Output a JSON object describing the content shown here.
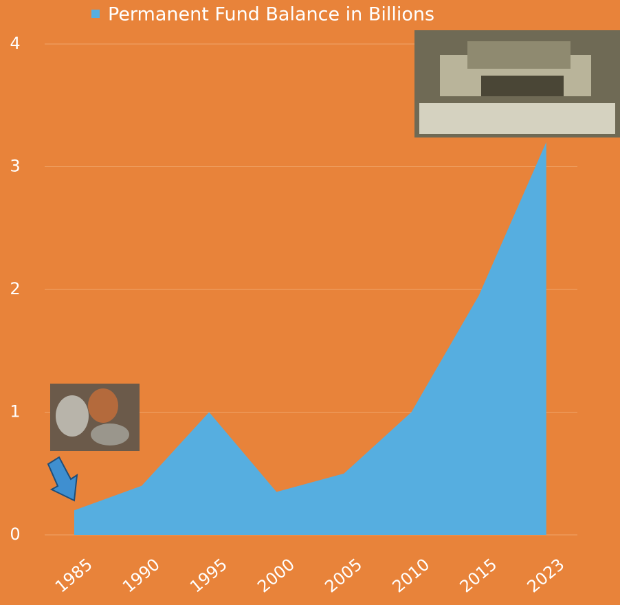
{
  "chart_data": {
    "type": "area",
    "categories": [
      "1985",
      "1990",
      "1995",
      "2000",
      "2005",
      "2010",
      "2015",
      "2023"
    ],
    "series": [
      {
        "name": "Permanent Fund Balance in Billions",
        "color": "#56aee0",
        "values": [
          0.2,
          0.4,
          1.0,
          0.35,
          0.5,
          1.0,
          1.95,
          3.2
        ]
      }
    ],
    "ylim": [
      0,
      4
    ],
    "yticks": [
      0,
      1,
      2,
      3,
      4
    ],
    "grid": true
  }
}
